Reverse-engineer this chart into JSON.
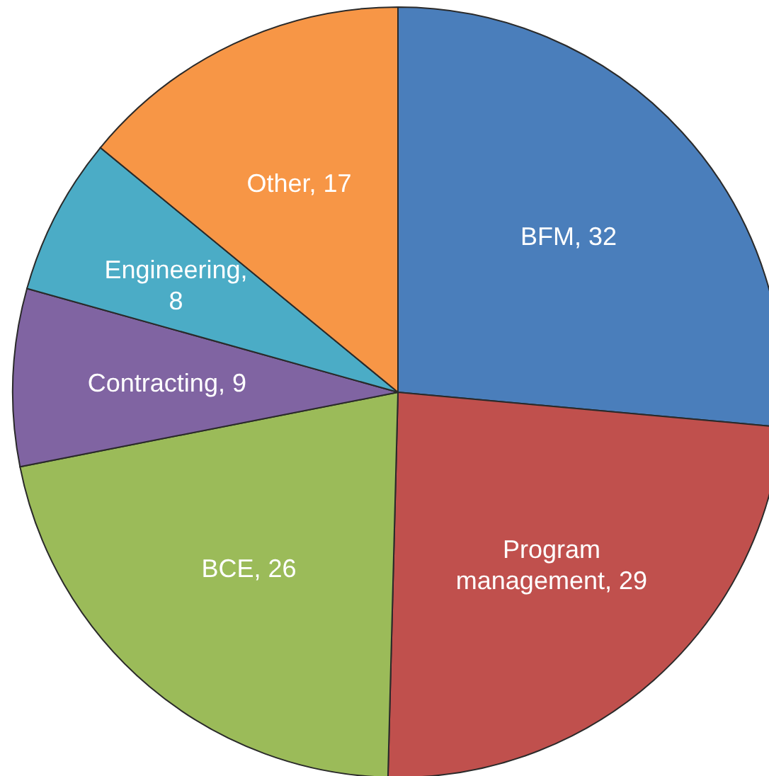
{
  "chart_data": {
    "type": "pie",
    "categories": [
      "BFM, 32",
      "Program management, 29",
      "BCE, 26",
      "Contracting, 9",
      "Engineering, 8",
      "Other, 17"
    ],
    "values": [
      32,
      29,
      26,
      9,
      8,
      17
    ],
    "colors": [
      "#4a7ebb",
      "#c0504d",
      "#9bbb59",
      "#8064a2",
      "#4bacc6",
      "#f79646"
    ]
  }
}
